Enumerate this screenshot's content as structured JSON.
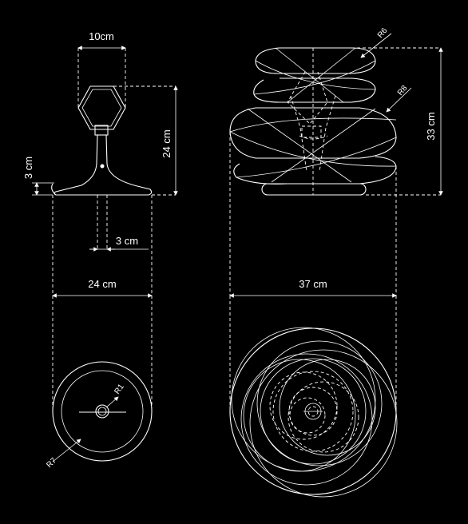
{
  "dimensions": {
    "top_width": "10cm",
    "total_height": "24 cm",
    "base_height": "3 cm",
    "stem_width": "3 cm",
    "base_diameter": "24 cm",
    "shade_diameter": "37 cm",
    "shade_height": "33 cm",
    "radius_upper": "R6",
    "radius_lower": "R8",
    "radius_hub": "R1",
    "radius_base": "R7"
  },
  "colors": {
    "background": "#000000",
    "lines": "#ffffff"
  }
}
